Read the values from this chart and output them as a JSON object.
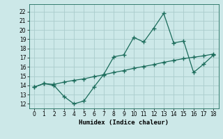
{
  "xlabel": "Humidex (Indice chaleur)",
  "background_color": "#cce8e8",
  "grid_color": "#aacccc",
  "line_color": "#1a6b5a",
  "xlim": [
    -0.5,
    18.5
  ],
  "ylim": [
    11.5,
    22.8
  ],
  "xticks": [
    0,
    1,
    2,
    3,
    4,
    5,
    6,
    7,
    8,
    9,
    10,
    11,
    12,
    13,
    14,
    15,
    16,
    17,
    18
  ],
  "yticks": [
    12,
    13,
    14,
    15,
    16,
    17,
    18,
    19,
    20,
    21,
    22
  ],
  "line1_x": [
    0,
    1,
    2,
    3,
    4,
    5,
    6,
    7,
    8,
    9,
    10,
    11,
    12,
    13,
    14,
    15,
    16,
    17,
    18
  ],
  "line1_y": [
    13.8,
    14.2,
    14.0,
    12.8,
    12.0,
    12.3,
    13.8,
    15.2,
    17.1,
    17.3,
    19.2,
    18.7,
    20.2,
    21.8,
    18.6,
    18.8,
    15.4,
    16.3,
    17.3
  ],
  "line2_x": [
    0,
    1,
    2,
    3,
    4,
    5,
    6,
    7,
    8,
    9,
    10,
    11,
    12,
    13,
    14,
    15,
    16,
    17,
    18
  ],
  "line2_y": [
    13.8,
    14.2,
    14.1,
    14.35,
    14.55,
    14.7,
    14.95,
    15.15,
    15.4,
    15.6,
    15.85,
    16.05,
    16.25,
    16.5,
    16.7,
    16.9,
    17.05,
    17.2,
    17.4
  ],
  "tick_fontsize": 5.5,
  "xlabel_fontsize": 6.5
}
